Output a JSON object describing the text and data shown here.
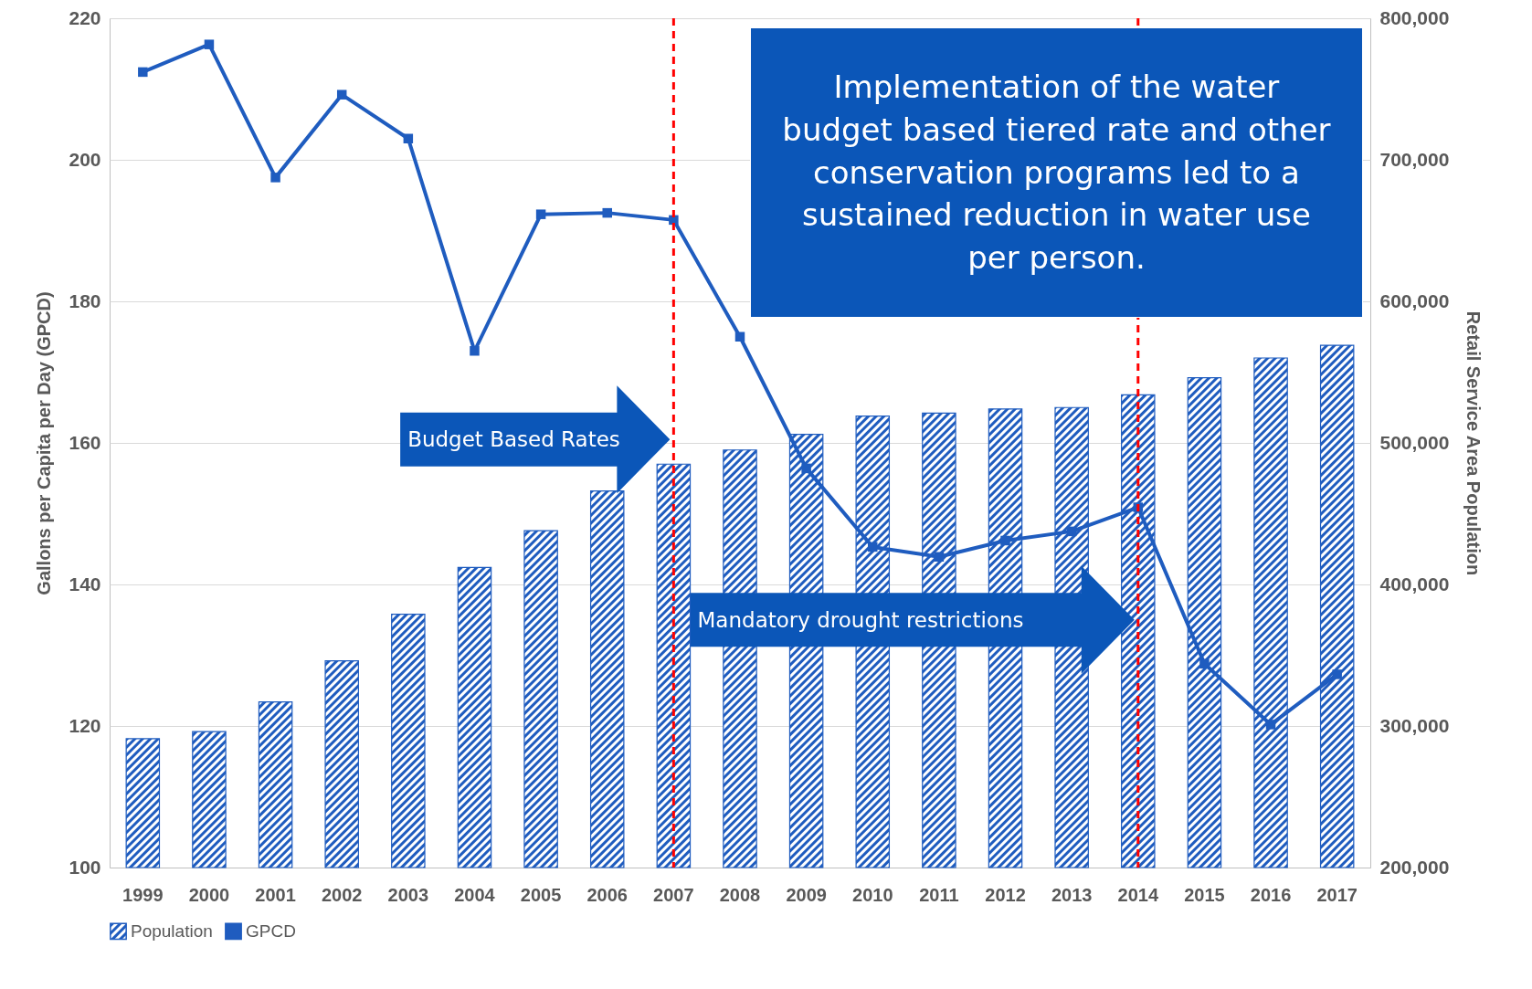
{
  "chart_data": {
    "type": "bar",
    "categories": [
      "1999",
      "2000",
      "2001",
      "2002",
      "2003",
      "2004",
      "2005",
      "2006",
      "2007",
      "2008",
      "2009",
      "2010",
      "2011",
      "2012",
      "2013",
      "2014",
      "2015",
      "2016",
      "2017"
    ],
    "series": [
      {
        "name": "Population",
        "axis": "y2",
        "color": "#1f5cbf",
        "values": [
          291000,
          296000,
          317000,
          346000,
          379000,
          412000,
          438000,
          466000,
          485000,
          495000,
          506000,
          519000,
          521000,
          524000,
          525000,
          534000,
          546000,
          560000,
          569000
        ]
      },
      {
        "name": "GPCD",
        "type": "line",
        "color": "#1f5cbf",
        "marker": "square",
        "values": [
          212.4,
          216.3,
          197.5,
          209.2,
          203.0,
          173.0,
          192.3,
          192.5,
          191.5,
          175.0,
          156.4,
          145.3,
          143.9,
          146.2,
          147.5,
          150.9,
          128.8,
          120.2,
          127.3
        ]
      }
    ],
    "ylabel": "Gallons per Capita per Day (GPCD)",
    "y2label": "Retail Service Area Population",
    "ylim": [
      100,
      220
    ],
    "yticks": [
      100,
      120,
      140,
      160,
      180,
      200,
      220
    ],
    "y2lim": [
      200000,
      800000
    ],
    "y2ticks": [
      {
        "value": 200000,
        "label": "200,000"
      },
      {
        "value": 300000,
        "label": "300,000"
      },
      {
        "value": 400000,
        "label": "400,000"
      },
      {
        "value": 500000,
        "label": "500,000"
      },
      {
        "value": 600000,
        "label": "600,000"
      },
      {
        "value": 700000,
        "label": "700,000"
      },
      {
        "value": 800000,
        "label": "800,000"
      }
    ],
    "grid": "y",
    "legend": "bottom",
    "line_style": "solid",
    "ref_lines": [
      {
        "axis": "x",
        "value": "2007",
        "color": "#ff0000",
        "line_style": "dashed"
      },
      {
        "axis": "x",
        "value": "2014",
        "color": "#ff0000",
        "line_style": "dashed"
      }
    ],
    "annotations": [
      "Implementation of the water budget based tiered rate and other conservation programs led to a  sustained reduction in water use per person.",
      "Budget Based Rates",
      "Mandatory drought restrictions"
    ]
  }
}
